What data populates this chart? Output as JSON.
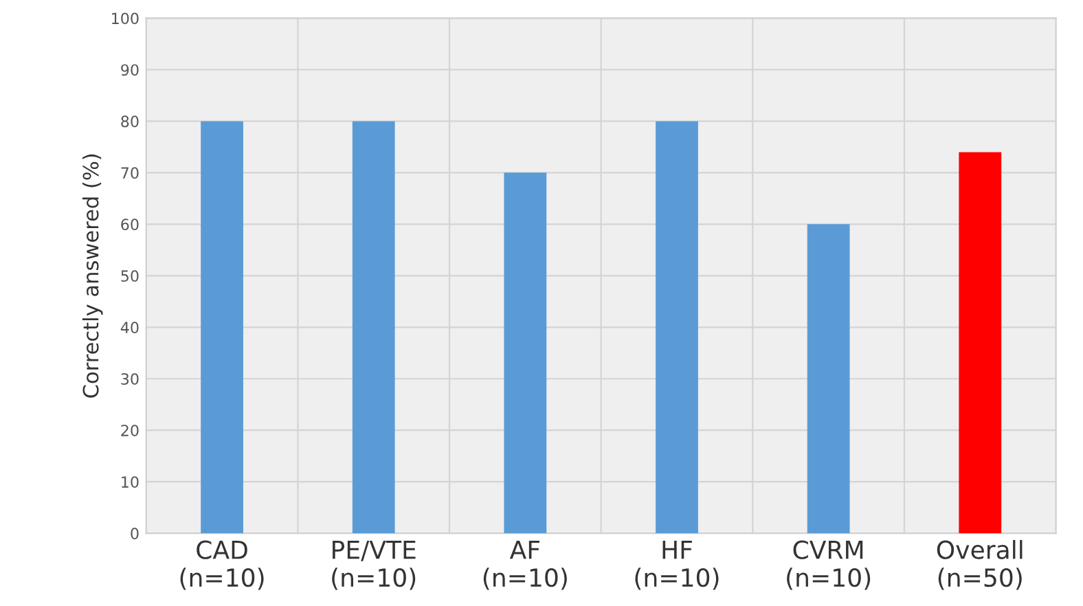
{
  "chart_data": {
    "type": "bar",
    "ylabel": "Correctly answered (%)",
    "categories": [
      "CAD\n(n=10)",
      "PE/VTE\n(n=10)",
      "AF\n(n=10)",
      "HF\n(n=10)",
      "CVRM\n(n=10)",
      "Overall\n(n=50)"
    ],
    "values": [
      80,
      80,
      70,
      80,
      60,
      74
    ],
    "colors": [
      "#5b9bd5",
      "#5b9bd5",
      "#5b9bd5",
      "#5b9bd5",
      "#5b9bd5",
      "#ff0000"
    ],
    "ylim": [
      0,
      100
    ],
    "yticks": [
      0,
      10,
      20,
      30,
      40,
      50,
      60,
      70,
      80,
      90,
      100
    ],
    "grid": true
  }
}
